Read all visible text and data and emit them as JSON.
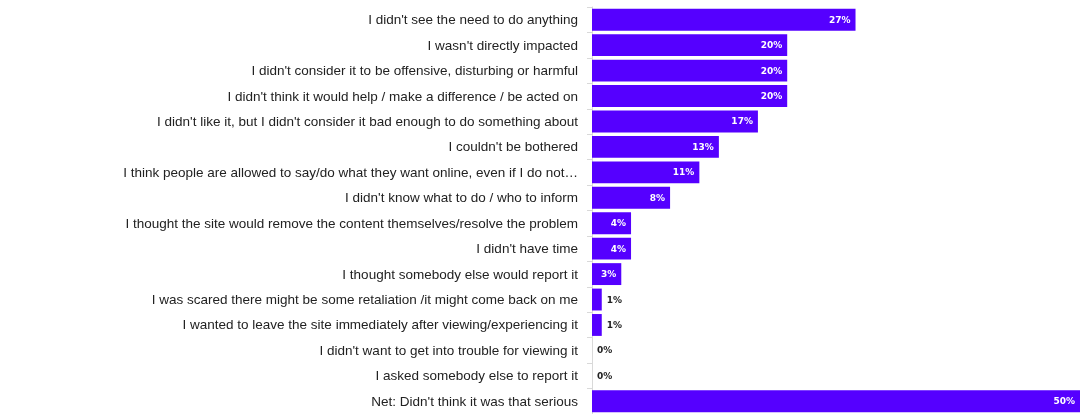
{
  "chart_data": {
    "type": "bar",
    "orientation": "horizontal",
    "value_labels": [
      "27%",
      "20%",
      "20%",
      "20%",
      "17%",
      "13%",
      "11%",
      "8%",
      "4%",
      "4%",
      "3%",
      "1%",
      "1%",
      "0%",
      "0%",
      "50%"
    ],
    "color": "#5500ff",
    "categories": [
      "I didn't see the need to do anything",
      "I wasn't directly impacted",
      "I didn't consider it to be offensive, disturbing or harmful",
      "I didn't think it would help / make a difference / be acted on",
      "I didn't like it, but I didn't consider it bad enough to do something about",
      "I couldn't be bothered",
      "I think people are allowed to say/do what they want online, even if I do not…",
      "I didn't know what to do / who to inform",
      "I thought the site would remove the content themselves/resolve the problem",
      "I didn't have time",
      "I thought somebody else would report it",
      "I was scared there might be some retaliation /it might come back on me",
      "I wanted to leave the site immediately after viewing/experiencing it",
      "I didn't want to get into trouble for viewing it",
      "I asked somebody else to report it",
      "Net: Didn't think it was that serious"
    ],
    "values": [
      27,
      20,
      20,
      20,
      17,
      13,
      11,
      8,
      4,
      4,
      3,
      1,
      1,
      0,
      0,
      50
    ]
  }
}
